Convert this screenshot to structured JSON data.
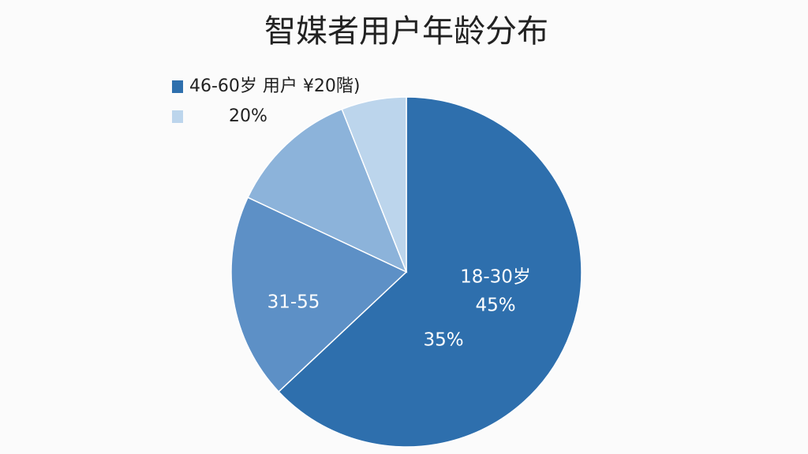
{
  "chart_data": {
    "type": "pie",
    "title": "智媒者用户年龄分布",
    "values": [
      63,
      19,
      12,
      6
    ],
    "colors": [
      "#2e6fad",
      "#5d90c6",
      "#8cb3da",
      "#bcd5ec"
    ],
    "legend": [
      {
        "label": "46-60岁 用户 ¥20階)",
        "color": "#2e6fad"
      },
      {
        "label": "20%",
        "color": "#bcd5ec"
      }
    ],
    "annotations": [
      "18-30岁",
      "45%",
      "35%",
      "31-55"
    ]
  }
}
